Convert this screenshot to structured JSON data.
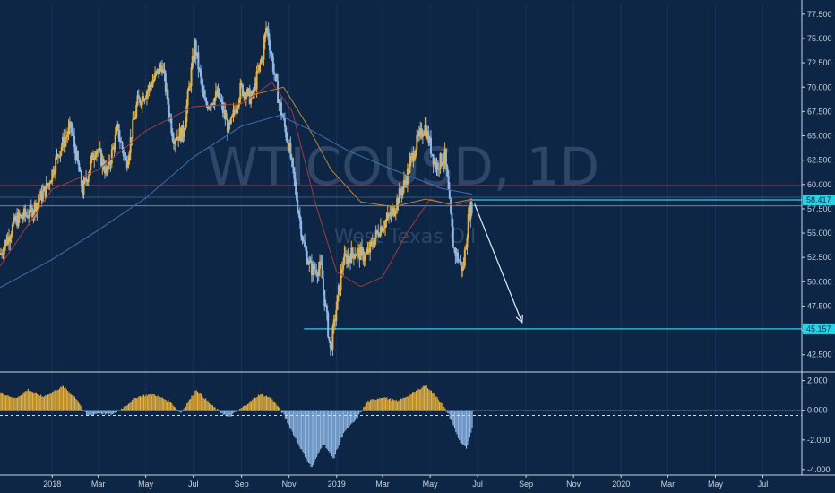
{
  "watermark": {
    "symbol": "WTICOUSD, 1D",
    "name": "West Texas Oil"
  },
  "colors": {
    "background": "#0d2646",
    "bull": "#e8b23a",
    "bear": "#8fb8e6",
    "level": "#27d4e8",
    "ma_red": "#a33a3a",
    "ma_blue": "#3f6fb0",
    "ma_orange": "#b9892e",
    "axis_text": "#c9d3e0"
  },
  "chart_data": [
    {
      "type": "line",
      "title": "",
      "subtitle": "",
      "series": [],
      "x_ticks": [
        "2018",
        "Mar",
        "May",
        "Jul",
        "Sep",
        "Nov",
        "2019",
        "Mar",
        "May",
        "Jul",
        "Sep",
        "Nov",
        "2020",
        "Mar",
        "May",
        "Jul"
      ],
      "x_start": "2017-10-26",
      "x_end": "2020-08-20",
      "ylim": [
        41.0,
        78.5
      ],
      "y_ticks": [
        "77.500",
        "75.000",
        "72.500",
        "70.000",
        "67.500",
        "65.000",
        "62.500",
        "60.000",
        "57.500",
        "55.000",
        "52.500",
        "50.000",
        "47.500",
        "45.000",
        "42.500"
      ],
      "close": [
        {
          "date": "2017-10-26",
          "value": 52.8
        },
        {
          "date": "2017-11-15",
          "value": 56.3
        },
        {
          "date": "2017-12-05",
          "value": 57.2
        },
        {
          "date": "2017-12-26",
          "value": 59.8
        },
        {
          "date": "2018-01-10",
          "value": 63.5
        },
        {
          "date": "2018-01-25",
          "value": 65.9
        },
        {
          "date": "2018-02-09",
          "value": 59.3
        },
        {
          "date": "2018-02-26",
          "value": 63.9
        },
        {
          "date": "2018-03-12",
          "value": 61.2
        },
        {
          "date": "2018-03-26",
          "value": 65.6
        },
        {
          "date": "2018-04-06",
          "value": 62.1
        },
        {
          "date": "2018-04-20",
          "value": 68.4
        },
        {
          "date": "2018-05-04",
          "value": 69.8
        },
        {
          "date": "2018-05-22",
          "value": 72.3
        },
        {
          "date": "2018-06-05",
          "value": 64.9
        },
        {
          "date": "2018-06-18",
          "value": 65.3
        },
        {
          "date": "2018-07-03",
          "value": 74.3
        },
        {
          "date": "2018-07-16",
          "value": 68.1
        },
        {
          "date": "2018-08-02",
          "value": 69.2
        },
        {
          "date": "2018-08-16",
          "value": 65.5
        },
        {
          "date": "2018-08-31",
          "value": 69.9
        },
        {
          "date": "2018-09-14",
          "value": 68.8
        },
        {
          "date": "2018-09-28",
          "value": 73.4
        },
        {
          "date": "2018-10-03",
          "value": 76.4
        },
        {
          "date": "2018-10-18",
          "value": 68.9
        },
        {
          "date": "2018-11-01",
          "value": 63.8
        },
        {
          "date": "2018-11-20",
          "value": 53.6
        },
        {
          "date": "2018-11-29",
          "value": 51.3
        },
        {
          "date": "2018-12-12",
          "value": 51.4
        },
        {
          "date": "2018-12-24",
          "value": 42.9
        },
        {
          "date": "2019-01-09",
          "value": 52.1
        },
        {
          "date": "2019-01-24",
          "value": 53.1
        },
        {
          "date": "2019-02-08",
          "value": 52.6
        },
        {
          "date": "2019-02-25",
          "value": 55.5
        },
        {
          "date": "2019-03-12",
          "value": 56.9
        },
        {
          "date": "2019-03-29",
          "value": 60.1
        },
        {
          "date": "2019-04-12",
          "value": 63.9
        },
        {
          "date": "2019-04-24",
          "value": 66.1
        },
        {
          "date": "2019-05-08",
          "value": 61.9
        },
        {
          "date": "2019-05-20",
          "value": 62.9
        },
        {
          "date": "2019-05-31",
          "value": 53.5
        },
        {
          "date": "2019-06-12",
          "value": 51.1
        },
        {
          "date": "2019-06-20",
          "value": 57.1
        },
        {
          "date": "2019-06-24",
          "value": 57.9
        }
      ],
      "moving_averages": [
        {
          "color_key": "ma_red",
          "points": [
            {
              "date": "2017-10-26",
              "value": 51.6
            },
            {
              "date": "2018-01-01",
              "value": 59.5
            },
            {
              "date": "2018-03-01",
              "value": 61.5
            },
            {
              "date": "2018-05-01",
              "value": 65.5
            },
            {
              "date": "2018-07-01",
              "value": 68.0
            },
            {
              "date": "2018-09-01",
              "value": 68.3
            },
            {
              "date": "2018-10-10",
              "value": 70.5
            },
            {
              "date": "2018-11-05",
              "value": 67.5
            },
            {
              "date": "2018-12-05",
              "value": 58.0
            },
            {
              "date": "2019-01-01",
              "value": 51.0
            },
            {
              "date": "2019-02-01",
              "value": 49.5
            },
            {
              "date": "2019-03-01",
              "value": 50.5
            },
            {
              "date": "2019-04-01",
              "value": 55.0
            },
            {
              "date": "2019-05-01",
              "value": 58.5
            },
            {
              "date": "2019-06-01",
              "value": 57.8
            },
            {
              "date": "2019-06-24",
              "value": 58.4
            }
          ]
        },
        {
          "color_key": "ma_orange",
          "points": [
            {
              "date": "2018-09-15",
              "value": 69.2
            },
            {
              "date": "2018-10-25",
              "value": 70.0
            },
            {
              "date": "2018-11-25",
              "value": 66.0
            },
            {
              "date": "2018-12-25",
              "value": 61.5
            },
            {
              "date": "2019-02-01",
              "value": 58.2
            },
            {
              "date": "2019-03-15",
              "value": 57.7
            },
            {
              "date": "2019-04-25",
              "value": 58.5
            },
            {
              "date": "2019-05-25",
              "value": 58.0
            },
            {
              "date": "2019-06-24",
              "value": 58.5
            }
          ]
        },
        {
          "color_key": "ma_blue",
          "points": [
            {
              "date": "2017-10-26",
              "value": 49.4
            },
            {
              "date": "2018-01-01",
              "value": 52.3
            },
            {
              "date": "2018-03-01",
              "value": 55.3
            },
            {
              "date": "2018-05-01",
              "value": 58.6
            },
            {
              "date": "2018-07-01",
              "value": 62.8
            },
            {
              "date": "2018-09-01",
              "value": 66.0
            },
            {
              "date": "2018-10-20",
              "value": 67.1
            },
            {
              "date": "2018-12-01",
              "value": 65.5
            },
            {
              "date": "2019-01-15",
              "value": 63.5
            },
            {
              "date": "2019-03-15",
              "value": 61.5
            },
            {
              "date": "2019-05-15",
              "value": 59.6
            },
            {
              "date": "2019-06-24",
              "value": 59.0
            }
          ]
        }
      ],
      "horizontal_levels": [
        {
          "label": "58.417",
          "value": 58.417,
          "start": "2019-06-20",
          "style": "cyan"
        },
        {
          "label": "",
          "value": 59.9,
          "start": "2017-10-26",
          "style": "red"
        },
        {
          "label": "",
          "value": 57.8,
          "start": "2017-10-26",
          "style": "grey"
        },
        {
          "label": "45.157",
          "value": 45.157,
          "start": "2018-11-20",
          "style": "cyan"
        }
      ],
      "projection_arrow": {
        "from": {
          "date": "2019-06-27",
          "value": 58.0
        },
        "to": {
          "date": "2019-08-27",
          "value": 45.8
        }
      }
    },
    {
      "type": "bar",
      "title": "",
      "ylim": [
        -4.25,
        2.4
      ],
      "y_ticks": [
        "2.000",
        "0.000",
        "-2.000",
        "-4.000"
      ],
      "zero_line": -0.35,
      "histogram": [
        {
          "date": "2017-10-26",
          "value": 1.2
        },
        {
          "date": "2017-11-15",
          "value": 0.8
        },
        {
          "date": "2017-12-01",
          "value": 1.4
        },
        {
          "date": "2017-12-20",
          "value": 0.9
        },
        {
          "date": "2018-01-15",
          "value": 1.6
        },
        {
          "date": "2018-02-01",
          "value": 0.8
        },
        {
          "date": "2018-02-15",
          "value": -0.4
        },
        {
          "date": "2018-03-01",
          "value": -0.2
        },
        {
          "date": "2018-03-20",
          "value": -0.3
        },
        {
          "date": "2018-04-05",
          "value": 0.3
        },
        {
          "date": "2018-04-20",
          "value": 0.9
        },
        {
          "date": "2018-05-10",
          "value": 1.1
        },
        {
          "date": "2018-06-01",
          "value": 0.6
        },
        {
          "date": "2018-06-15",
          "value": -0.2
        },
        {
          "date": "2018-07-05",
          "value": 1.4
        },
        {
          "date": "2018-07-25",
          "value": 0.3
        },
        {
          "date": "2018-08-15",
          "value": -0.5
        },
        {
          "date": "2018-09-05",
          "value": 0.3
        },
        {
          "date": "2018-09-25",
          "value": 1.1
        },
        {
          "date": "2018-10-10",
          "value": 0.8
        },
        {
          "date": "2018-10-25",
          "value": -0.3
        },
        {
          "date": "2018-11-15",
          "value": -2.5
        },
        {
          "date": "2018-11-30",
          "value": -3.9
        },
        {
          "date": "2018-12-15",
          "value": -2.2
        },
        {
          "date": "2018-12-28",
          "value": -3.3
        },
        {
          "date": "2019-01-10",
          "value": -1.5
        },
        {
          "date": "2019-01-25",
          "value": -0.7
        },
        {
          "date": "2019-02-10",
          "value": 0.6
        },
        {
          "date": "2019-03-01",
          "value": 0.9
        },
        {
          "date": "2019-03-20",
          "value": 0.6
        },
        {
          "date": "2019-04-10",
          "value": 1.2
        },
        {
          "date": "2019-04-25",
          "value": 1.7
        },
        {
          "date": "2019-05-10",
          "value": 0.9
        },
        {
          "date": "2019-05-25",
          "value": -0.3
        },
        {
          "date": "2019-06-08",
          "value": -2.1
        },
        {
          "date": "2019-06-17",
          "value": -2.6
        },
        {
          "date": "2019-06-24",
          "value": -1.3
        }
      ]
    }
  ]
}
